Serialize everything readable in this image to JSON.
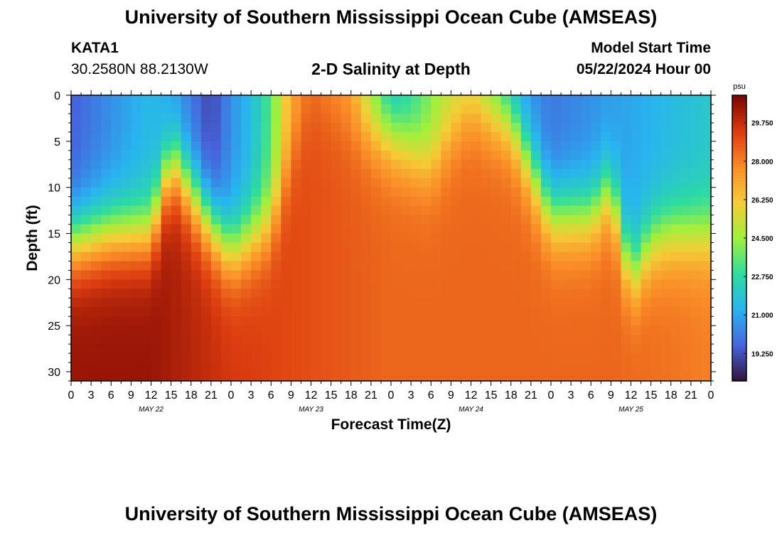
{
  "header": {
    "title": "University of Southern Mississippi Ocean Cube (AMSEAS)",
    "station_id": "KATA1",
    "coordinates": "30.2580N  88.2130W",
    "plot_title": "2-D Salinity at Depth",
    "model_start_label": "Model Start Time",
    "model_start_value": "05/22/2024 Hour 00"
  },
  "footer": {
    "title": "University of Southern Mississippi Ocean Cube (AMSEAS)"
  },
  "chart_data": {
    "type": "heatmap",
    "xlabel": "Forecast Time(Z)",
    "ylabel": "Depth (ft)",
    "x_hours_range": [
      0,
      96
    ],
    "y_range": [
      0,
      31
    ],
    "y_ticks": [
      0,
      5,
      10,
      15,
      20,
      25,
      30
    ],
    "x_tick_labels": [
      "0",
      "3",
      "6",
      "9",
      "12",
      "15",
      "18",
      "21",
      "0",
      "3",
      "6",
      "9",
      "12",
      "15",
      "18",
      "21",
      "0",
      "3",
      "6",
      "9",
      "12",
      "15",
      "18",
      "21",
      "0",
      "3",
      "6",
      "9",
      "12",
      "15",
      "18",
      "21",
      "0"
    ],
    "date_labels": [
      {
        "label": "MAY 22",
        "hour": 12
      },
      {
        "label": "MAY 23",
        "hour": 36
      },
      {
        "label": "MAY 24",
        "hour": 60
      },
      {
        "label": "MAY 25",
        "hour": 84
      }
    ],
    "colorbar": {
      "unit": "psu",
      "min": 18.0,
      "max": 31.0,
      "ticks": [
        "19.250",
        "21.000",
        "22.750",
        "24.500",
        "26.250",
        "28.000",
        "29.750"
      ],
      "tick_values": [
        19.25,
        21.0,
        22.75,
        24.5,
        26.25,
        28.0,
        29.75
      ]
    },
    "halocline_depth_ft": {
      "hours": [
        0,
        6,
        12,
        15,
        21,
        24,
        30,
        36,
        42,
        48,
        51,
        54,
        60,
        66,
        72,
        78,
        81,
        84,
        87,
        90,
        96
      ],
      "depth": [
        16,
        15,
        15,
        7,
        14,
        17,
        14,
        0,
        3,
        4.5,
        6,
        7.5,
        1,
        3,
        13,
        13,
        10,
        20,
        16,
        15,
        15
      ]
    },
    "surface_salinity_psu": {
      "hours": [
        0,
        6,
        12,
        18,
        21,
        24,
        27,
        30,
        33,
        36,
        42,
        45,
        48,
        51,
        54,
        57,
        60,
        63,
        66,
        72,
        78,
        84,
        90,
        96
      ],
      "values": [
        19.5,
        20.5,
        21.5,
        20,
        19,
        20.5,
        21.5,
        23.5,
        27,
        28,
        27,
        24,
        21.5,
        22.5,
        24,
        25,
        24.5,
        23,
        21,
        20,
        20.5,
        21,
        21.5,
        22
      ]
    },
    "deep_salinity_psu": {
      "hours": [
        0,
        12,
        24,
        36,
        48,
        60,
        72,
        84,
        96
      ],
      "values": [
        30.5,
        30.5,
        29.5,
        29,
        28.5,
        28.5,
        28.5,
        28.5,
        28
      ]
    }
  }
}
